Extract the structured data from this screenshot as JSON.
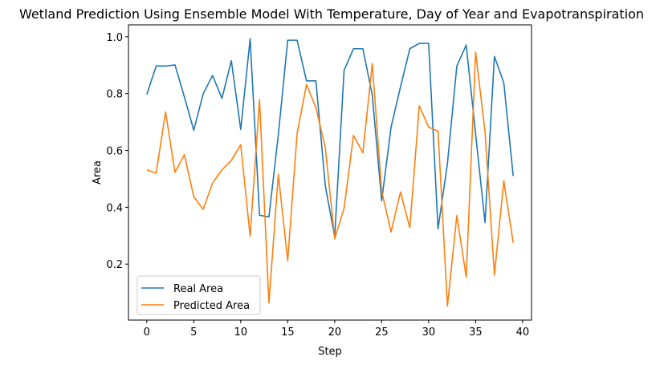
{
  "chart_data": {
    "type": "line",
    "title": "Wetland Prediction Using Ensemble Model With Temperature, Day of Year and Evapotranspiration",
    "xlabel": "Step",
    "ylabel": "Area",
    "xlim": [
      -1.95,
      40.95
    ],
    "ylim": [
      0.003,
      1.042
    ],
    "xticks": [
      0,
      5,
      10,
      15,
      20,
      25,
      30,
      35,
      40
    ],
    "yticks": [
      0.2,
      0.4,
      0.6,
      0.8,
      1.0
    ],
    "xtick_labels": [
      "0",
      "5",
      "10",
      "15",
      "20",
      "25",
      "30",
      "35",
      "40"
    ],
    "ytick_labels": [
      "0.2",
      "0.4",
      "0.6",
      "0.8",
      "1.0"
    ],
    "grid": false,
    "legend_position": "lower-left",
    "x": [
      0,
      1,
      2,
      3,
      4,
      5,
      6,
      7,
      8,
      9,
      10,
      11,
      12,
      13,
      14,
      15,
      16,
      17,
      18,
      19,
      20,
      21,
      22,
      23,
      24,
      25,
      26,
      27,
      28,
      29,
      30,
      31,
      32,
      33,
      34,
      35,
      36,
      37,
      38,
      39
    ],
    "series": [
      {
        "name": "Real Area",
        "color": "#1f77b4",
        "values": [
          0.797,
          0.897,
          0.897,
          0.901,
          0.789,
          0.671,
          0.799,
          0.864,
          0.783,
          0.916,
          0.674,
          0.993,
          0.372,
          0.366,
          0.655,
          0.988,
          0.988,
          0.845,
          0.845,
          0.476,
          0.296,
          0.882,
          0.958,
          0.958,
          0.795,
          0.423,
          0.682,
          0.823,
          0.958,
          0.977,
          0.977,
          0.324,
          0.554,
          0.897,
          0.971,
          0.658,
          0.346,
          0.931,
          0.838,
          0.51
        ]
      },
      {
        "name": "Predicted Area",
        "color": "#ff7f0e",
        "values": [
          0.532,
          0.52,
          0.736,
          0.523,
          0.585,
          0.437,
          0.393,
          0.485,
          0.532,
          0.565,
          0.62,
          0.298,
          0.779,
          0.063,
          0.516,
          0.212,
          0.66,
          0.832,
          0.751,
          0.61,
          0.289,
          0.397,
          0.653,
          0.592,
          0.906,
          0.457,
          0.313,
          0.454,
          0.328,
          0.757,
          0.682,
          0.668,
          0.052,
          0.371,
          0.154,
          0.946,
          0.666,
          0.162,
          0.493,
          0.275
        ]
      }
    ]
  }
}
